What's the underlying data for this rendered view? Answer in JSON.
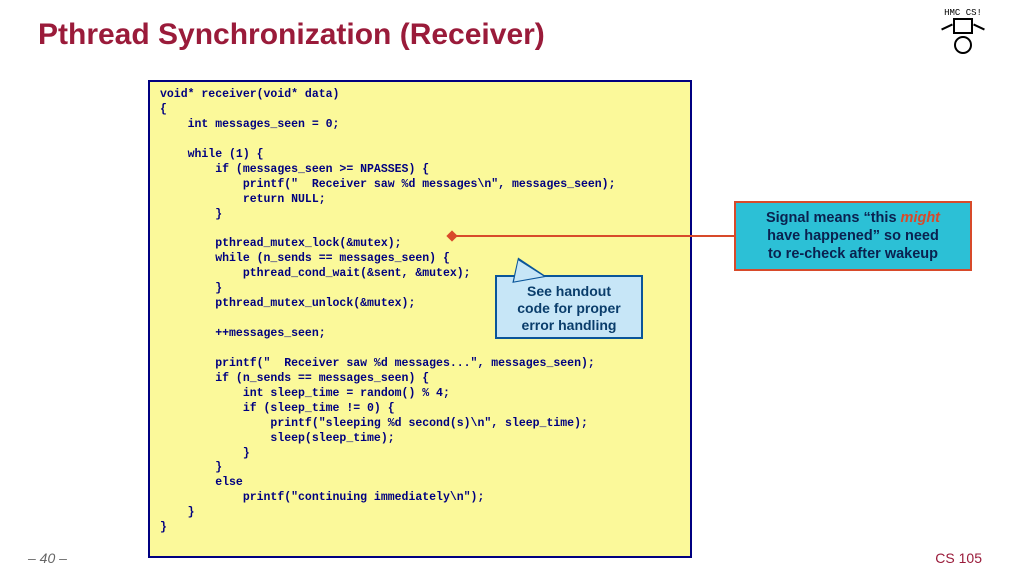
{
  "title": {
    "text": "Pthread Synchronization (Receiver)",
    "color": "#9a1b3a"
  },
  "logo": {
    "label": "HMC  CS!"
  },
  "code": {
    "color": "#000080",
    "background": "#fbf99a",
    "border_color": "#000080",
    "text": "void* receiver(void* data)\n{\n    int messages_seen = 0;\n\n    while (1) {\n        if (messages_seen >= NPASSES) {\n            printf(\"  Receiver saw %d messages\\n\", messages_seen);\n            return NULL;\n        }\n\n        pthread_mutex_lock(&mutex);\n        while (n_sends == messages_seen) {\n            pthread_cond_wait(&sent, &mutex);\n        }\n        pthread_mutex_unlock(&mutex);\n\n        ++messages_seen;\n\n        printf(\"  Receiver saw %d messages...\", messages_seen);\n        if (n_sends == messages_seen) {\n            int sleep_time = random() % 4;\n            if (sleep_time != 0) {\n                printf(\"sleeping %d second(s)\\n\", sleep_time);\n                sleep(sleep_time);\n            }\n        }\n        else\n            printf(\"continuing immediately\\n\");\n    }\n}"
  },
  "callout": {
    "line1": "See handout",
    "line2": "code for proper",
    "line3": "error handling",
    "fill": "#c7e6f7",
    "border": "#0a5599"
  },
  "signal": {
    "prefix": "Signal means “this ",
    "em": "might",
    "line2": "have happened” so need",
    "line3": "to re-check after wakeup",
    "fill": "#2cc0d6",
    "border": "#d84a2a"
  },
  "footer": {
    "left": "– 40 –",
    "right": "CS 105",
    "right_color": "#9a1b3a"
  }
}
